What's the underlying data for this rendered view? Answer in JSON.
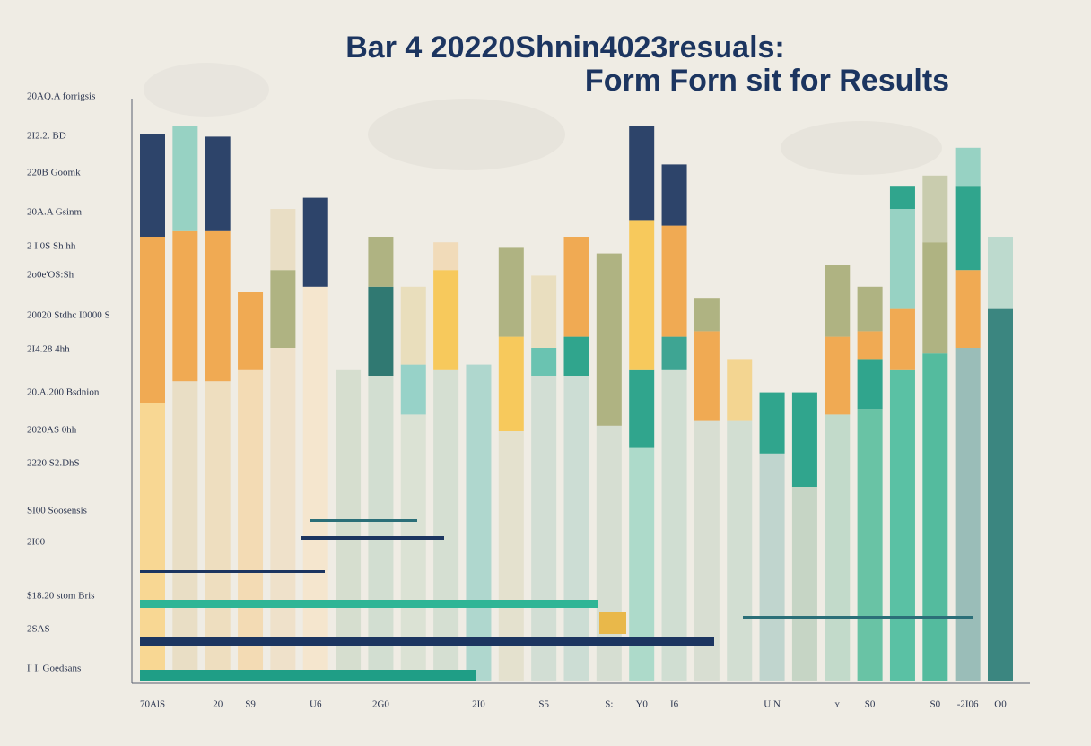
{
  "chart_data": {
    "type": "bar",
    "stacked": true,
    "title": "Bar 4 20220Shnin4023resuals:",
    "subtitle": "Form Forn sit for Results",
    "y_labels": [
      "20AQ.A forrigsis",
      "2I2.2. BD",
      "220B Goomk",
      "20A.A Gsinm",
      "2 I 0S Sh hh",
      "2o0e'OS:Sh",
      "20020 Stdhc I0000 S",
      "2I4.28 4hh",
      "20.A.200 Bsdnion",
      "2020AS 0hh",
      "2220 S2.DhS",
      "SI00 Soosensis",
      "2I00",
      "$18.20 stom Bris",
      "2SAS",
      "I' I. Goedsans"
    ],
    "categories": [
      "70AlS",
      null,
      "20",
      "S9",
      null,
      "U6",
      null,
      "2G0",
      null,
      null,
      "2I0",
      null,
      "S5",
      null,
      "S:",
      "Y0",
      "I6",
      null,
      null,
      "U N",
      null,
      "ʏ",
      "S0",
      null,
      "S0",
      "-2I06",
      "O0"
    ],
    "ylim": [
      0,
      100
    ],
    "series": [
      {
        "values": [
          50,
          54,
          54,
          56,
          60,
          71,
          56,
          55,
          48,
          56,
          57,
          45,
          55,
          55,
          46,
          42,
          56,
          47,
          47,
          41,
          35,
          48,
          49,
          56,
          59,
          60,
          67
        ],
        "colors": [
          "#f8d58c",
          "#e8dcc2",
          "#eedcbc",
          "#f3d9b0",
          "#efe0c8",
          "#f5e5cc",
          "#d4dccd",
          "#cfdccf",
          "#d9e1d2",
          "#d3ddd0",
          "#a9d5cc",
          "#e3e0cc",
          "#cfdcd3",
          "#c9dbd3",
          "#d4dcd0",
          "#a7d8c8",
          "#cddcd0",
          "#d6dcd0",
          "#cfdcd0",
          "#bcd3cc",
          "#c2d3c2",
          "#bed8c8",
          "#5dbf9f",
          "#4dbd9e",
          "#46b698",
          "#93b8b4",
          "#2b7d77"
        ]
      },
      {
        "values": [
          30,
          27,
          27,
          14,
          14,
          0,
          0,
          16,
          9,
          18,
          0,
          17,
          5,
          7,
          31,
          14,
          6,
          16,
          11,
          11,
          17,
          14,
          9,
          11,
          20,
          14,
          13
        ],
        "colors": [
          "#f0a446",
          "#f0a446",
          "#f0a446",
          "#f0a446",
          "#a9ae7a",
          "#f0a446",
          "#c0c0a0",
          "#1f6f68",
          "#8fcfc6",
          "#f7c550",
          "#8fcfc0",
          "#f7c550",
          "#5ebfad",
          "#1f9e86",
          "#a9ae7a",
          "#1f9e86",
          "#2f9e8c",
          "#f0a446",
          "#f3d28a",
          "#1f9e86",
          "#1f9e86",
          "#f0a446",
          "#1f9e86",
          "#f0a446",
          "#a9ae7a",
          "#f0a446",
          "#b8d8cc"
        ]
      },
      {
        "values": [
          18.5,
          19,
          17,
          0,
          11,
          16,
          0,
          9,
          14,
          5,
          0,
          16,
          13,
          18,
          0,
          27,
          20,
          6,
          0,
          0,
          0,
          13,
          5,
          18,
          12,
          15,
          0
        ],
        "colors": [
          "#1c3560",
          "#8fcfc0",
          "#1c3560",
          "#f0a446",
          "#e8dcc2",
          "#1c3560",
          "#cfdccf",
          "#a9ae7a",
          "#e8dcb8",
          "#f1d9b5",
          "#cfdcd3",
          "#a9ae7a",
          "#e8dcbc",
          "#f0a446",
          "#a9ae7a",
          "#f7c550",
          "#f0a446",
          "#a9ae7a",
          "#f3d28a",
          "#1f9e86",
          "#1f9e86",
          "#a9ae7a",
          "#f0a446",
          "#8fcfc0",
          "#c6c9a9",
          "#1f9e86",
          "#b8d8cc"
        ]
      },
      {
        "values": [
          0,
          0,
          0,
          0,
          0,
          0,
          0,
          0,
          0,
          0,
          0,
          0,
          0,
          0,
          0,
          17,
          11,
          0,
          0,
          0,
          0,
          0,
          8,
          4,
          0,
          7,
          0
        ],
        "colors": [
          "#8fcfc0",
          "#8fcfc0",
          "#8fcfc0",
          "#8fcfc0",
          "#8fcfc0",
          "#8fcfc0",
          "#8fcfc0",
          "#8fcfc0",
          "#8fcfc0",
          "#8fcfc0",
          "#8fcfc0",
          "#8fcfc0",
          "#8fcfc0",
          "#8fcfc0",
          "#8fcfc0",
          "#1c3560",
          "#1c3560",
          "#8fcfc0",
          "#8fcfc0",
          "#8fcfc0",
          "#8fcfc0",
          "#8fcfc0",
          "#a9ae7a",
          "#1f9e86",
          "#8fcfc0",
          "#8fcfc0",
          "#8fcfc0"
        ]
      }
    ]
  }
}
